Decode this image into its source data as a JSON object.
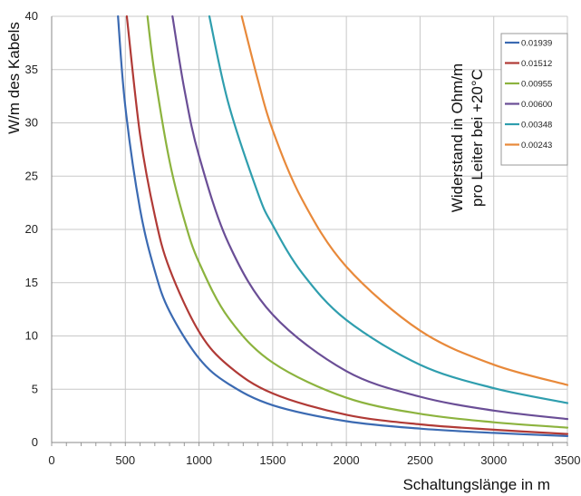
{
  "chart_data": {
    "type": "line",
    "title": "",
    "xlabel": "Schaltungslänge in m",
    "ylabel": "W/m des Kabels",
    "xlim": [
      0,
      3500
    ],
    "ylim": [
      0,
      40
    ],
    "x_ticks": [
      0,
      500,
      1000,
      1500,
      2000,
      2500,
      3000,
      3500
    ],
    "y_ticks": [
      0,
      5,
      10,
      15,
      20,
      25,
      30,
      35,
      40
    ],
    "grid": true,
    "legend_title": [
      "Widerstand in Ohm/m",
      "pro Leiter bei +20°C"
    ],
    "legend_position": "top-right",
    "series": [
      {
        "name": "0.01939",
        "color": "#3b6ab2",
        "points": [
          [
            450,
            40.0
          ],
          [
            500,
            31.5
          ],
          [
            600,
            21.9
          ],
          [
            700,
            16.1
          ],
          [
            800,
            12.3
          ],
          [
            1000,
            7.9
          ],
          [
            1200,
            5.5
          ],
          [
            1500,
            3.5
          ],
          [
            2000,
            2.0
          ],
          [
            2500,
            1.3
          ],
          [
            3000,
            0.9
          ],
          [
            3500,
            0.6
          ]
        ]
      },
      {
        "name": "0.01512",
        "color": "#b03a36",
        "points": [
          [
            510,
            40.0
          ],
          [
            600,
            28.9
          ],
          [
            700,
            21.3
          ],
          [
            800,
            16.3
          ],
          [
            1000,
            10.4
          ],
          [
            1200,
            7.2
          ],
          [
            1500,
            4.6
          ],
          [
            2000,
            2.6
          ],
          [
            2500,
            1.7
          ],
          [
            3000,
            1.2
          ],
          [
            3500,
            0.8
          ]
        ]
      },
      {
        "name": "0.00955",
        "color": "#8cb33e",
        "points": [
          [
            650,
            40.0
          ],
          [
            700,
            34.5
          ],
          [
            800,
            26.4
          ],
          [
            900,
            20.9
          ],
          [
            1000,
            16.9
          ],
          [
            1200,
            11.7
          ],
          [
            1500,
            7.5
          ],
          [
            2000,
            4.2
          ],
          [
            2500,
            2.7
          ],
          [
            3000,
            1.9
          ],
          [
            3500,
            1.4
          ]
        ]
      },
      {
        "name": "0.00600",
        "color": "#6a4e96",
        "points": [
          [
            820,
            40.0
          ],
          [
            900,
            33.2
          ],
          [
            1000,
            26.9
          ],
          [
            1200,
            18.7
          ],
          [
            1500,
            12.0
          ],
          [
            2000,
            6.7
          ],
          [
            2500,
            4.3
          ],
          [
            3000,
            3.0
          ],
          [
            3500,
            2.2
          ]
        ]
      },
      {
        "name": "0.00348",
        "color": "#2f9eae",
        "points": [
          [
            1070,
            40.0
          ],
          [
            1200,
            31.8
          ],
          [
            1400,
            23.4
          ],
          [
            1500,
            20.4
          ],
          [
            1700,
            15.9
          ],
          [
            2000,
            11.5
          ],
          [
            2500,
            7.3
          ],
          [
            3000,
            5.1
          ],
          [
            3500,
            3.7
          ]
        ]
      },
      {
        "name": "0.00243",
        "color": "#e8893a",
        "points": [
          [
            1290,
            40.0
          ],
          [
            1400,
            34.0
          ],
          [
            1500,
            29.3
          ],
          [
            1700,
            22.8
          ],
          [
            2000,
            16.5
          ],
          [
            2500,
            10.5
          ],
          [
            3000,
            7.3
          ],
          [
            3500,
            5.4
          ]
        ]
      }
    ]
  }
}
